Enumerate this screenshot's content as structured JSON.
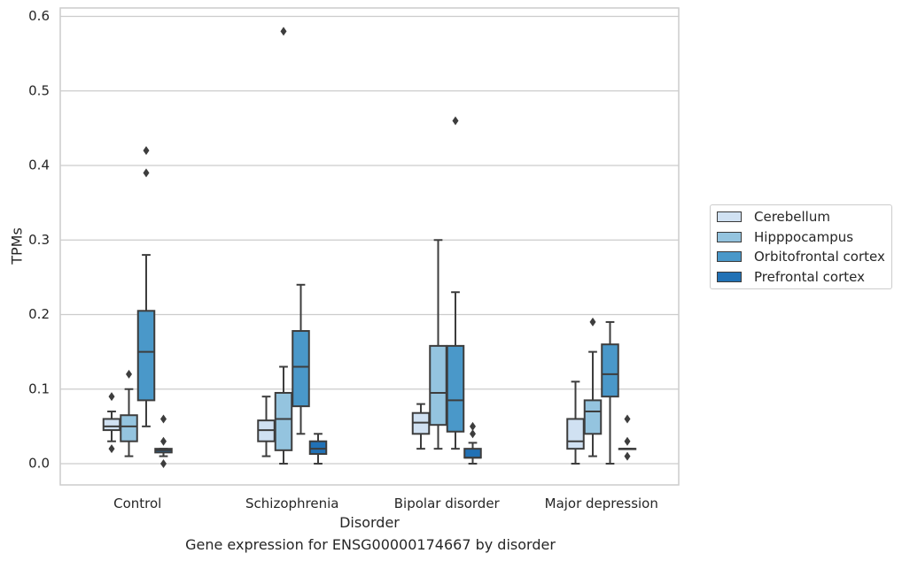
{
  "chart_data": {
    "type": "box",
    "caption": "Gene expression for ENSG00000174667 by disorder",
    "xlabel": "Disorder",
    "ylabel": "TPMs",
    "ylim": [
      -0.03,
      0.61
    ],
    "yticks": [
      "0.0",
      "0.1",
      "0.2",
      "0.3",
      "0.4",
      "0.5",
      "0.6"
    ],
    "grid": "horizontal",
    "legend_position": "right",
    "categories": [
      "Control",
      "Schizophrenia",
      "Bipolar disorder",
      "Major depression"
    ],
    "series": [
      {
        "name": "Cerebellum",
        "color": "#d0e1f2",
        "boxes": [
          {
            "whislo": 0.03,
            "q1": 0.045,
            "med": 0.05,
            "q3": 0.06,
            "whishi": 0.07,
            "fliers": [
              0.02,
              0.09
            ]
          },
          {
            "whislo": 0.01,
            "q1": 0.03,
            "med": 0.045,
            "q3": 0.058,
            "whishi": 0.09,
            "fliers": []
          },
          {
            "whislo": 0.02,
            "q1": 0.04,
            "med": 0.055,
            "q3": 0.068,
            "whishi": 0.08,
            "fliers": []
          },
          {
            "whislo": 0.0,
            "q1": 0.02,
            "med": 0.03,
            "q3": 0.06,
            "whishi": 0.11,
            "fliers": []
          }
        ]
      },
      {
        "name": "Hipppocampus",
        "color": "#94c4df",
        "boxes": [
          {
            "whislo": 0.01,
            "q1": 0.03,
            "med": 0.05,
            "q3": 0.065,
            "whishi": 0.1,
            "fliers": [
              0.12
            ]
          },
          {
            "whislo": 0.0,
            "q1": 0.018,
            "med": 0.06,
            "q3": 0.095,
            "whishi": 0.13,
            "fliers": [
              0.58
            ]
          },
          {
            "whislo": 0.02,
            "q1": 0.052,
            "med": 0.095,
            "q3": 0.158,
            "whishi": 0.3,
            "fliers": []
          },
          {
            "whislo": 0.01,
            "q1": 0.04,
            "med": 0.07,
            "q3": 0.085,
            "whishi": 0.15,
            "fliers": [
              0.19
            ]
          }
        ]
      },
      {
        "name": "Orbitofrontal cortex",
        "color": "#4a98c9",
        "boxes": [
          {
            "whislo": 0.05,
            "q1": 0.085,
            "med": 0.15,
            "q3": 0.205,
            "whishi": 0.28,
            "fliers": [
              0.39,
              0.42
            ]
          },
          {
            "whislo": 0.04,
            "q1": 0.077,
            "med": 0.13,
            "q3": 0.178,
            "whishi": 0.24,
            "fliers": []
          },
          {
            "whislo": 0.02,
            "q1": 0.043,
            "med": 0.085,
            "q3": 0.158,
            "whishi": 0.23,
            "fliers": [
              0.46
            ]
          },
          {
            "whislo": 0.0,
            "q1": 0.09,
            "med": 0.12,
            "q3": 0.16,
            "whishi": 0.19,
            "fliers": []
          }
        ]
      },
      {
        "name": "Prefrontal cortex",
        "color": "#2171b5",
        "boxes": [
          {
            "whislo": 0.01,
            "q1": 0.015,
            "med": 0.018,
            "q3": 0.02,
            "whishi": 0.02,
            "fliers": [
              0.0,
              0.03,
              0.06
            ]
          },
          {
            "whislo": 0.0,
            "q1": 0.013,
            "med": 0.02,
            "q3": 0.03,
            "whishi": 0.04,
            "fliers": []
          },
          {
            "whislo": 0.0,
            "q1": 0.008,
            "med": 0.008,
            "q3": 0.02,
            "whishi": 0.028,
            "fliers": [
              0.04,
              0.05
            ]
          },
          {
            "whislo": 0.02,
            "q1": 0.02,
            "med": 0.02,
            "q3": 0.02,
            "whishi": 0.02,
            "fliers": [
              0.01,
              0.03,
              0.06
            ]
          }
        ]
      }
    ]
  }
}
